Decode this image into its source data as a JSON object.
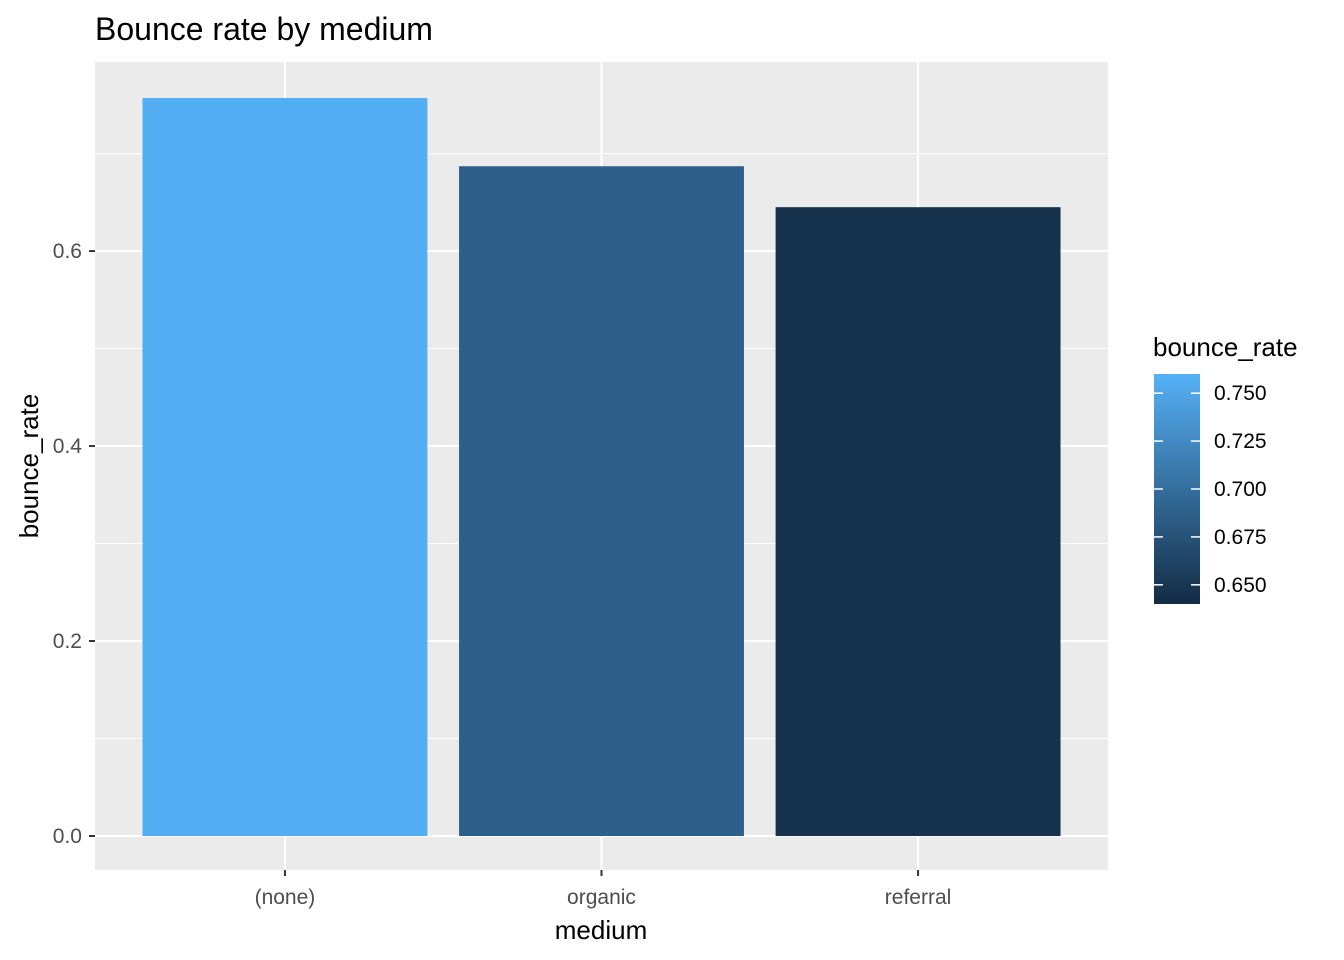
{
  "chart_data": {
    "type": "bar",
    "title": "Bounce rate by medium",
    "xlabel": "medium",
    "ylabel": "bounce_rate",
    "categories": [
      "(none)",
      "organic",
      "referral"
    ],
    "values": [
      0.757,
      0.687,
      0.645
    ],
    "ylim": [
      0,
      0.78
    ],
    "yticks": [
      0.0,
      0.2,
      0.4,
      0.6
    ],
    "ytick_labels": [
      "0.0",
      "0.2",
      "0.4",
      "0.6"
    ],
    "grid": true,
    "panel_background": "#ebebeb",
    "grid_color": "#ffffff",
    "legend": {
      "title": "bounce_rate",
      "position": "right",
      "type": "colorbar",
      "min": 0.64,
      "max": 0.76,
      "low_color": "#132b43",
      "high_color": "#56b1f7",
      "breaks": [
        0.75,
        0.725,
        0.7,
        0.675,
        0.65
      ],
      "labels": [
        "0.750",
        "0.725",
        "0.700",
        "0.675",
        "0.650"
      ]
    }
  }
}
